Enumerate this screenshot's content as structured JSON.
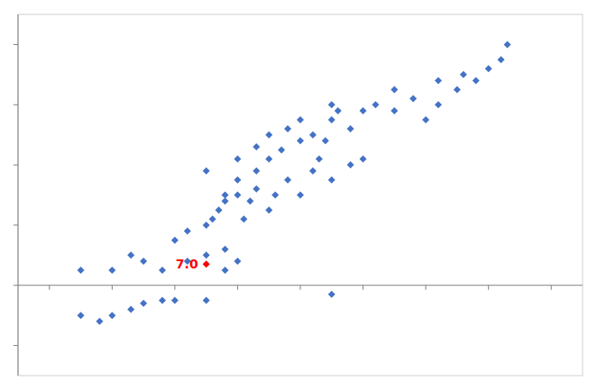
{
  "chart_data": {
    "type": "scatter",
    "series": [
      {
        "color": "#4472C4",
        "marker": "diamond",
        "x": [
          55,
          58,
          60,
          60,
          63,
          63,
          65,
          65,
          67,
          68,
          70,
          70,
          72,
          74,
          75,
          75,
          76,
          78,
          80,
          82,
          85,
          85,
          88,
          90,
          92,
          92,
          95,
          96,
          98,
          100,
          102,
          103,
          50,
          52,
          55,
          56,
          57,
          58,
          58,
          60,
          61,
          62,
          63,
          65,
          66,
          68,
          70,
          72,
          73,
          75,
          78,
          80,
          35,
          40,
          43,
          45,
          48,
          52,
          55,
          58,
          60,
          35,
          38,
          40,
          43,
          45,
          48,
          50,
          55,
          75
        ],
        "values": [
          38,
          30,
          35,
          42,
          38,
          46,
          42,
          50,
          45,
          52,
          48,
          55,
          50,
          48,
          55,
          60,
          58,
          52,
          58,
          60,
          58,
          65,
          62,
          55,
          60,
          68,
          65,
          70,
          68,
          72,
          75,
          80,
          15,
          18,
          20,
          22,
          25,
          12,
          28,
          30,
          22,
          28,
          32,
          25,
          30,
          35,
          30,
          38,
          42,
          35,
          40,
          42,
          5,
          5,
          10,
          8,
          5,
          8,
          10,
          5,
          8,
          -10,
          -12,
          -10,
          -8,
          -6,
          -5,
          -5,
          -5,
          -3
        ]
      },
      {
        "color": "#FF0000",
        "marker": "diamond",
        "x": [
          55
        ],
        "values": [
          7.0
        ]
      }
    ],
    "annotations": [
      {
        "text": "7.0",
        "x": 55,
        "y": 7.0,
        "color": "#FF0000"
      }
    ],
    "xlim": [
      25,
      115
    ],
    "ylim": [
      -30,
      90
    ],
    "xticks": [
      30,
      40,
      50,
      60,
      70,
      80,
      90,
      100,
      110
    ],
    "yticks": [
      -20,
      0,
      20,
      40,
      60,
      80
    ],
    "grid": false,
    "tick_labels": false
  }
}
